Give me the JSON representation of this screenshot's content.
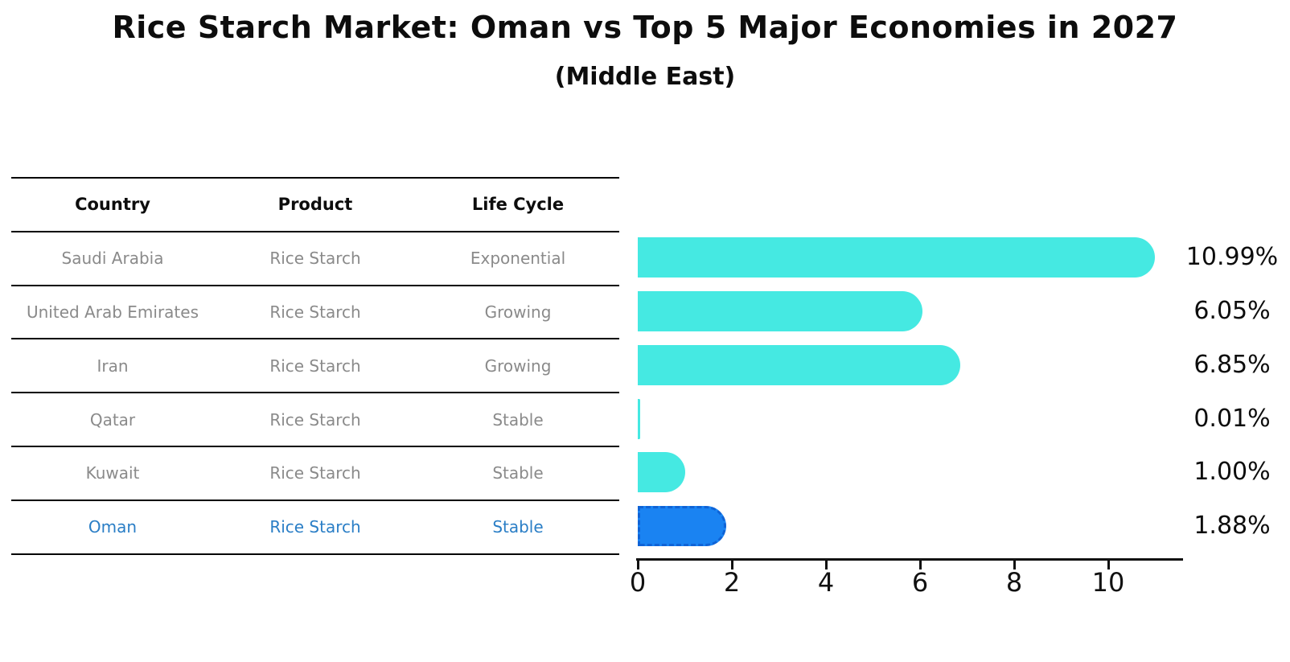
{
  "header": {
    "title": "Rice Starch Market: Oman vs Top 5 Major Economies in 2027",
    "subtitle": "(Middle East)"
  },
  "table": {
    "headers": [
      "Country",
      "Product",
      "Life Cycle"
    ],
    "rows": [
      {
        "country": "Saudi Arabia",
        "product": "Rice Starch",
        "life_cycle": "Exponential"
      },
      {
        "country": "United Arab Emirates",
        "product": "Rice Starch",
        "life_cycle": "Growing"
      },
      {
        "country": "Iran",
        "product": "Rice Starch",
        "life_cycle": "Growing"
      },
      {
        "country": "Qatar",
        "product": "Rice Starch",
        "life_cycle": "Stable"
      },
      {
        "country": "Kuwait",
        "product": "Rice Starch",
        "life_cycle": "Stable"
      },
      {
        "country": "Oman",
        "product": "Rice Starch",
        "life_cycle": "Stable"
      }
    ],
    "highlight_row_index": 5
  },
  "chart_data": {
    "type": "bar",
    "orientation": "horizontal",
    "title": "Rice Starch Market: Oman vs Top 5 Major Economies in 2027",
    "subtitle": "(Middle East)",
    "categories": [
      "Saudi Arabia",
      "United Arab Emirates",
      "Iran",
      "Qatar",
      "Kuwait",
      "Oman"
    ],
    "values": [
      10.99,
      6.05,
      6.85,
      0.01,
      1.0,
      1.88
    ],
    "value_labels": [
      "10.99%",
      "6.05%",
      "6.85%",
      "0.01%",
      "1.00%",
      "1.88%"
    ],
    "x_ticks": [
      0,
      2,
      4,
      6,
      8,
      10
    ],
    "xlim": [
      0,
      11.6
    ],
    "grid": false,
    "legend": false,
    "bar_color": "#45e9e2",
    "highlight_index": 5,
    "highlight_bar_color": "#1a83f2",
    "highlight_border_color": "#0f63d6",
    "highlight_text_color": "#2a7ec6",
    "text_color": "#8a8a8a",
    "axis_color": "#111111"
  }
}
